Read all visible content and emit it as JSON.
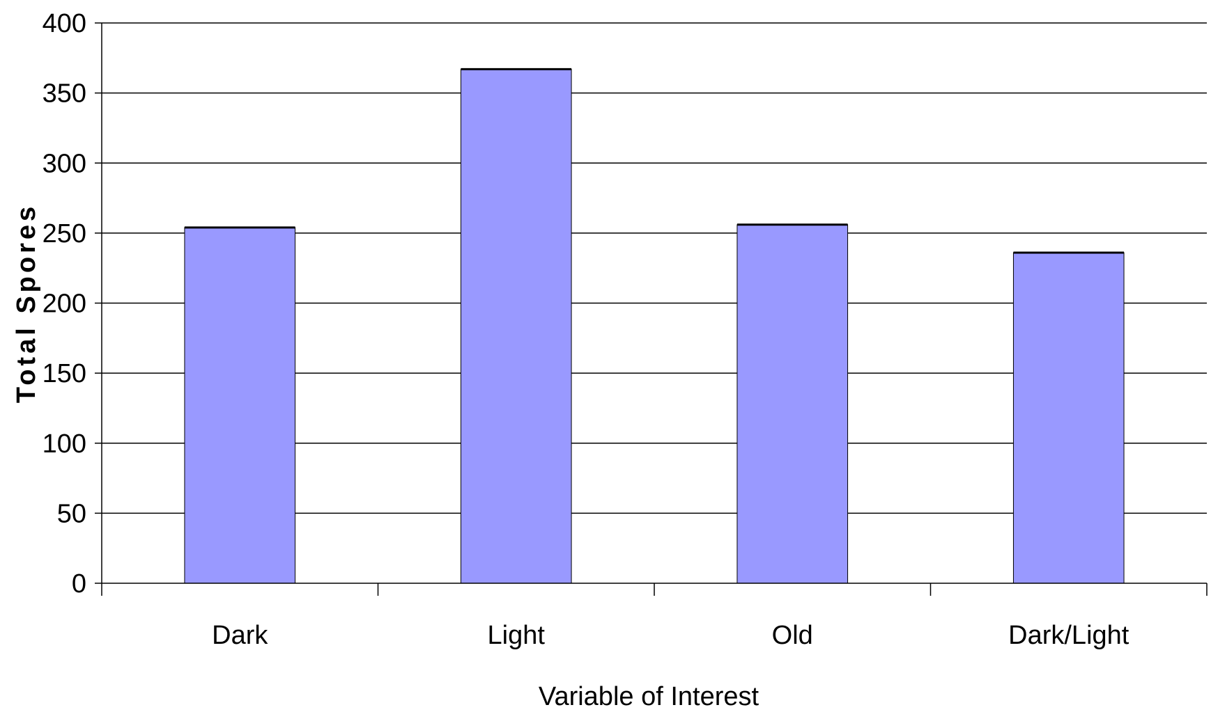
{
  "chart_data": {
    "type": "bar",
    "categories": [
      "Dark",
      "Light",
      "Old",
      "Dark/Light"
    ],
    "values": [
      254,
      367,
      256,
      236
    ],
    "xlabel": "Variable of Interest",
    "ylabel": "Total Spores",
    "ylim": [
      0,
      400
    ],
    "yticks": [
      "0",
      "50",
      "100",
      "150",
      "200",
      "250",
      "300",
      "350",
      "400"
    ],
    "grid": true,
    "legend": "none",
    "colors": {
      "bar_fill": "#9999ff",
      "bar_stroke": "#000000",
      "grid": "#000000",
      "background": "#ffffff"
    }
  }
}
